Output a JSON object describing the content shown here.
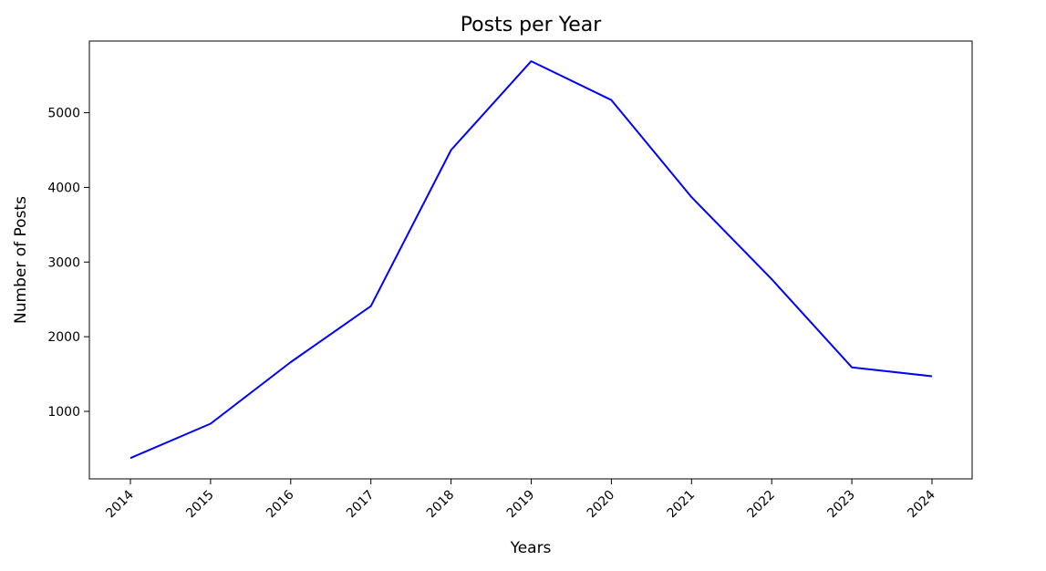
{
  "chart_data": {
    "type": "line",
    "title": "Posts per Year",
    "xlabel": "Years",
    "ylabel": "Number of Posts",
    "categories": [
      "2014",
      "2015",
      "2016",
      "2017",
      "2018",
      "2019",
      "2020",
      "2021",
      "2022",
      "2023",
      "2024"
    ],
    "series": [
      {
        "values": [
          375,
          835,
          1660,
          2410,
          4500,
          5690,
          5170,
          3870,
          2770,
          1590,
          1470
        ],
        "color": "#0000ff"
      }
    ],
    "yticks": [
      1000,
      2000,
      3000,
      4000,
      5000
    ],
    "ylim": [
      96,
      5960
    ],
    "grid": false,
    "legend": "none"
  }
}
